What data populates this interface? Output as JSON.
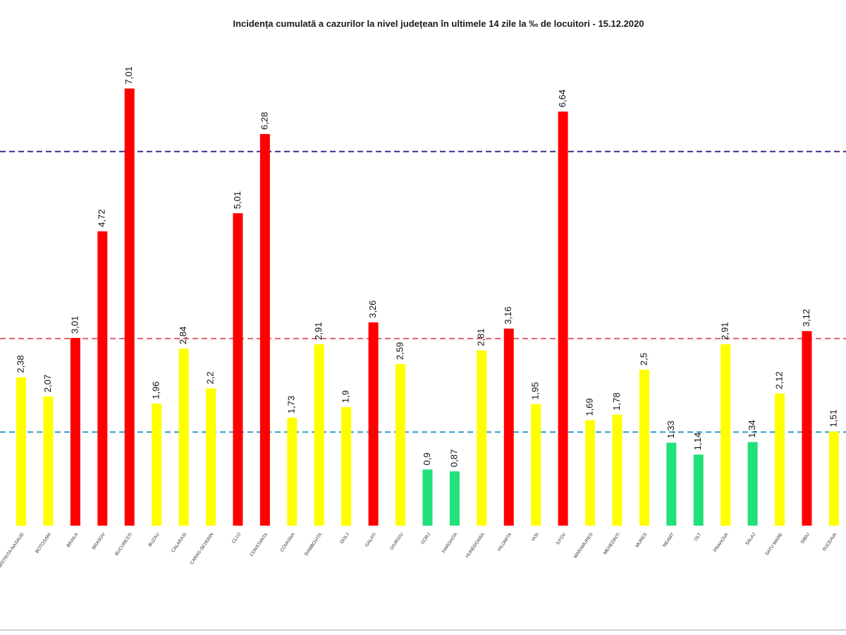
{
  "chart_data": {
    "type": "bar",
    "title": "Incidența cumulată a cazurilor la nivel județean în ultimele 14 zile   la ‰ de locuitori  - 15.12.2020",
    "categories": [
      "BISTRITA-NASAUD",
      "BOTOSANI",
      "BRAILA",
      "BRASOV",
      "BUCURESTI",
      "BUZAU",
      "CALARASI",
      "CARAS-SEVERIN",
      "CLUJ",
      "CONSTANTA",
      "COVASNA",
      "DAMBOVITA",
      "DOLJ",
      "GALATI",
      "GIURGIU",
      "GORJ",
      "HARGHITA",
      "HUNEDOARA",
      "IALOMITA",
      "IASI",
      "ILFOV",
      "MARAMURES",
      "MEHEDINTI",
      "MURES",
      "NEAMT",
      "OLT",
      "PRAHOVA",
      "SALAJ",
      "SATU MARE",
      "SIBIU",
      "SUCEAVA"
    ],
    "values": [
      2.38,
      2.07,
      3.01,
      4.72,
      7.01,
      1.96,
      2.84,
      2.2,
      5.01,
      6.28,
      1.73,
      2.91,
      1.9,
      3.26,
      2.59,
      0.9,
      0.87,
      2.81,
      3.16,
      1.95,
      6.64,
      1.69,
      1.78,
      2.5,
      1.33,
      1.14,
      2.91,
      1.34,
      2.12,
      3.12,
      1.51
    ],
    "value_labels": [
      "2,38",
      "2,07",
      "3,01",
      "4,72",
      "7,01",
      "1,96",
      "2,84",
      "2,2",
      "5,01",
      "6,28",
      "1,73",
      "2,91",
      "1,9",
      "3,26",
      "2,59",
      "0,9",
      "0,87",
      "2,81",
      "3,16",
      "1,95",
      "6,64",
      "1,69",
      "1,78",
      "2,5",
      "1,33",
      "1,14",
      "2,91",
      "1,34",
      "2,12",
      "3,12",
      "1,51"
    ],
    "colors": [
      "#ffff00",
      "#ffff00",
      "#ff0000",
      "#ff0000",
      "#ff0000",
      "#ffff00",
      "#ffff00",
      "#ffff00",
      "#ff0000",
      "#ff0000",
      "#ffff00",
      "#ffff00",
      "#ffff00",
      "#ff0000",
      "#ffff00",
      "#22e07a",
      "#22e07a",
      "#ffff00",
      "#ff0000",
      "#ffff00",
      "#ff0000",
      "#ffff00",
      "#ffff00",
      "#ffff00",
      "#22e07a",
      "#22e07a",
      "#ffff00",
      "#22e07a",
      "#ffff00",
      "#ff0000",
      "#ffff00"
    ],
    "ylim": [
      0,
      7.4
    ],
    "reference_lines": [
      {
        "value": 6,
        "color": "#3b2a8c"
      },
      {
        "value": 3,
        "color": "#e06070"
      },
      {
        "value": 1.5,
        "color": "#2a9ad0"
      }
    ]
  }
}
